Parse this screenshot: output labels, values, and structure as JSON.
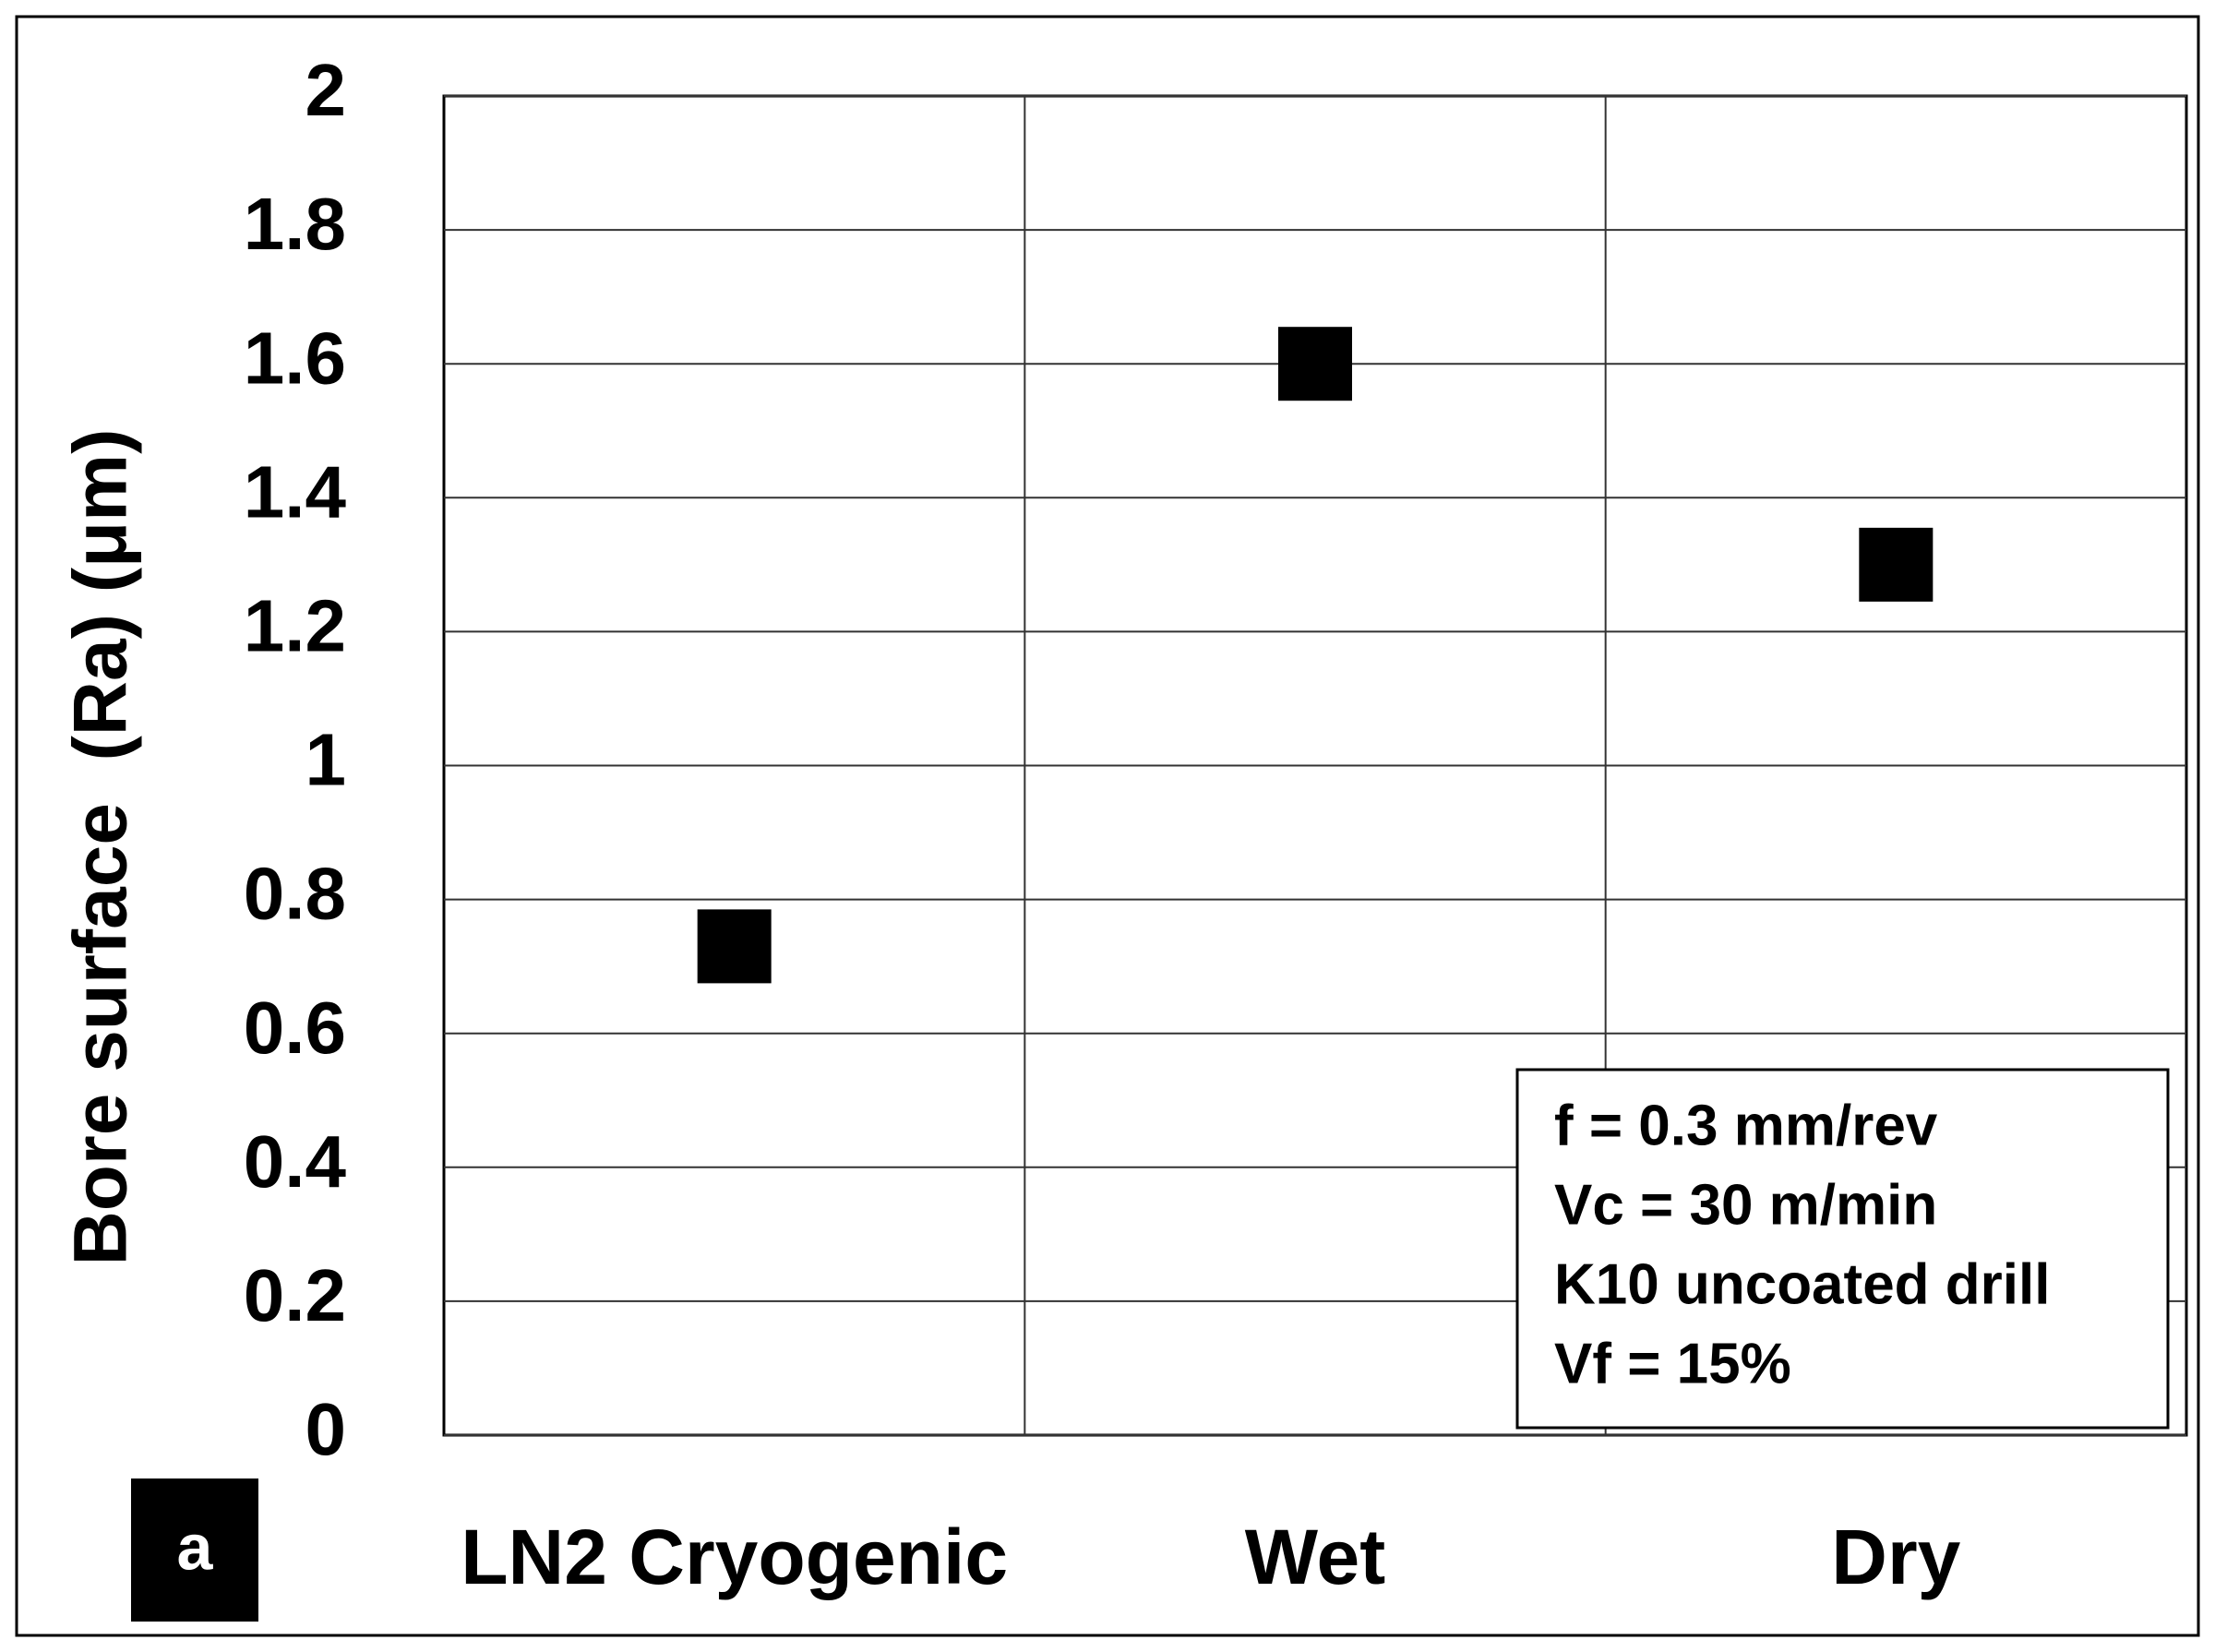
{
  "chart_data": {
    "type": "scatter",
    "y_label": "Bore surface  (Ra) (μm)",
    "panel_label": "a",
    "categories": [
      "LN2 Cryogenic",
      "Wet",
      "Dry"
    ],
    "series": [
      {
        "name": "Ra",
        "color": "#000000",
        "values": [
          0.73,
          1.6,
          1.3
        ]
      }
    ],
    "ylim": [
      0,
      2
    ],
    "yticks": [
      0,
      0.2,
      0.4,
      0.6,
      0.8,
      1,
      1.2,
      1.4,
      1.6,
      1.8,
      2
    ],
    "grid": true,
    "annotations": [
      "f = 0.3 mm/rev",
      "Vc = 30 m/min",
      "K10 uncoated drill",
      "Vf = 15%"
    ]
  }
}
